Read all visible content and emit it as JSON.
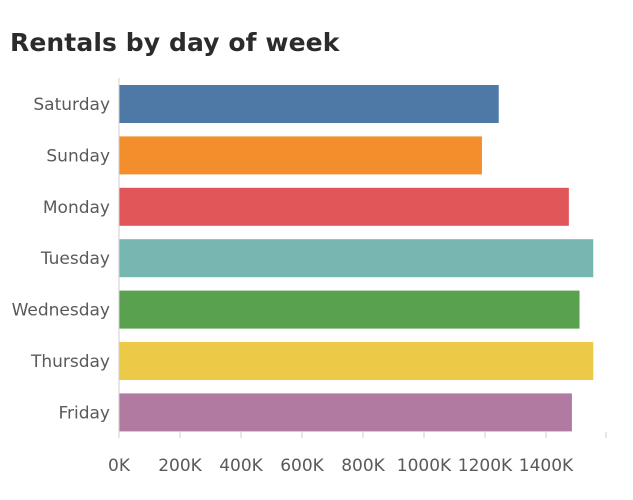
{
  "chart_data": {
    "type": "bar",
    "orientation": "horizontal",
    "title": "Rentals by day of week",
    "xlabel": "",
    "ylabel": "",
    "categories": [
      "Saturday",
      "Sunday",
      "Monday",
      "Tuesday",
      "Wednesday",
      "Thursday",
      "Friday"
    ],
    "values": [
      1245000,
      1190000,
      1475000,
      1555000,
      1510000,
      1555000,
      1485000
    ],
    "colors": [
      "#4e79a7",
      "#f28e2b",
      "#e15759",
      "#76b7b2",
      "#59a14f",
      "#edc948",
      "#b07aa1"
    ],
    "xlim": [
      0,
      1600000
    ],
    "x_ticks": [
      0,
      200000,
      400000,
      600000,
      800000,
      1000000,
      1200000,
      1400000
    ],
    "x_tick_labels": [
      "0K",
      "200K",
      "400K",
      "600K",
      "800K",
      "1000K",
      "1200K",
      "1400K"
    ],
    "grid": false,
    "legend": "none"
  }
}
